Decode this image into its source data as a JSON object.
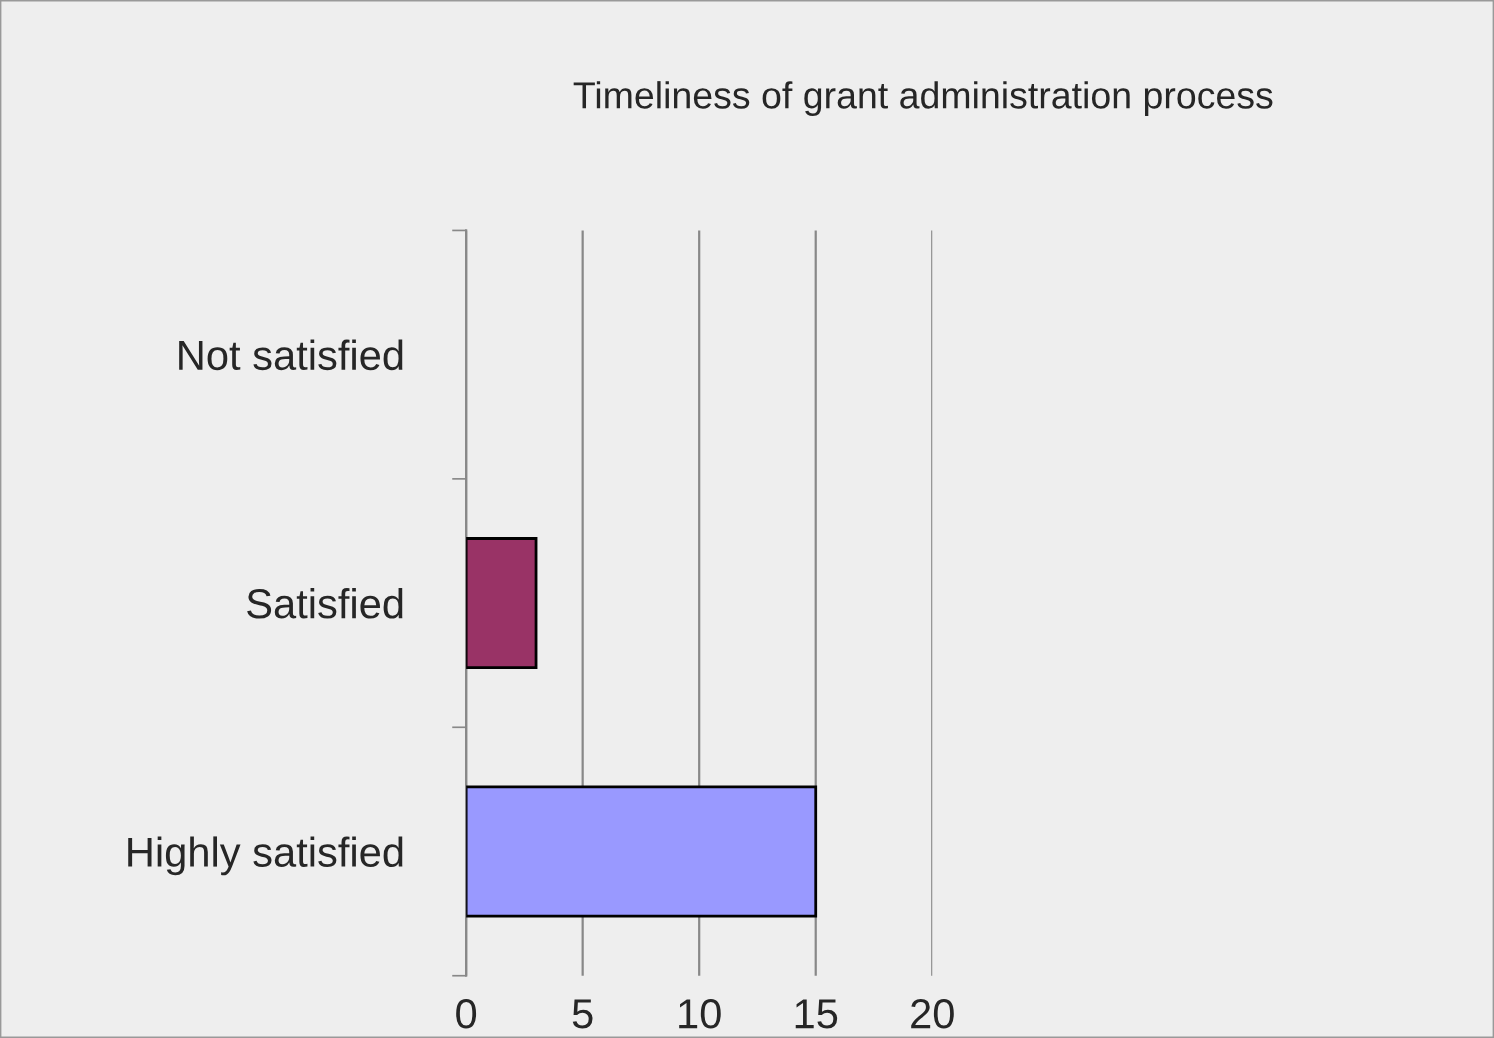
{
  "chart_data": {
    "type": "bar",
    "orientation": "horizontal",
    "title": "Timeliness of grant administration process",
    "categories": [
      "Not satisfied",
      "Satisfied",
      "Highly satisfied"
    ],
    "values": [
      0,
      3,
      15
    ],
    "colors": [
      "#9999ff",
      "#993366",
      "#9999ff"
    ],
    "xlim": [
      0,
      20
    ],
    "xticks": [
      0,
      5,
      10,
      15,
      20
    ],
    "grid": "x",
    "legend": false
  }
}
